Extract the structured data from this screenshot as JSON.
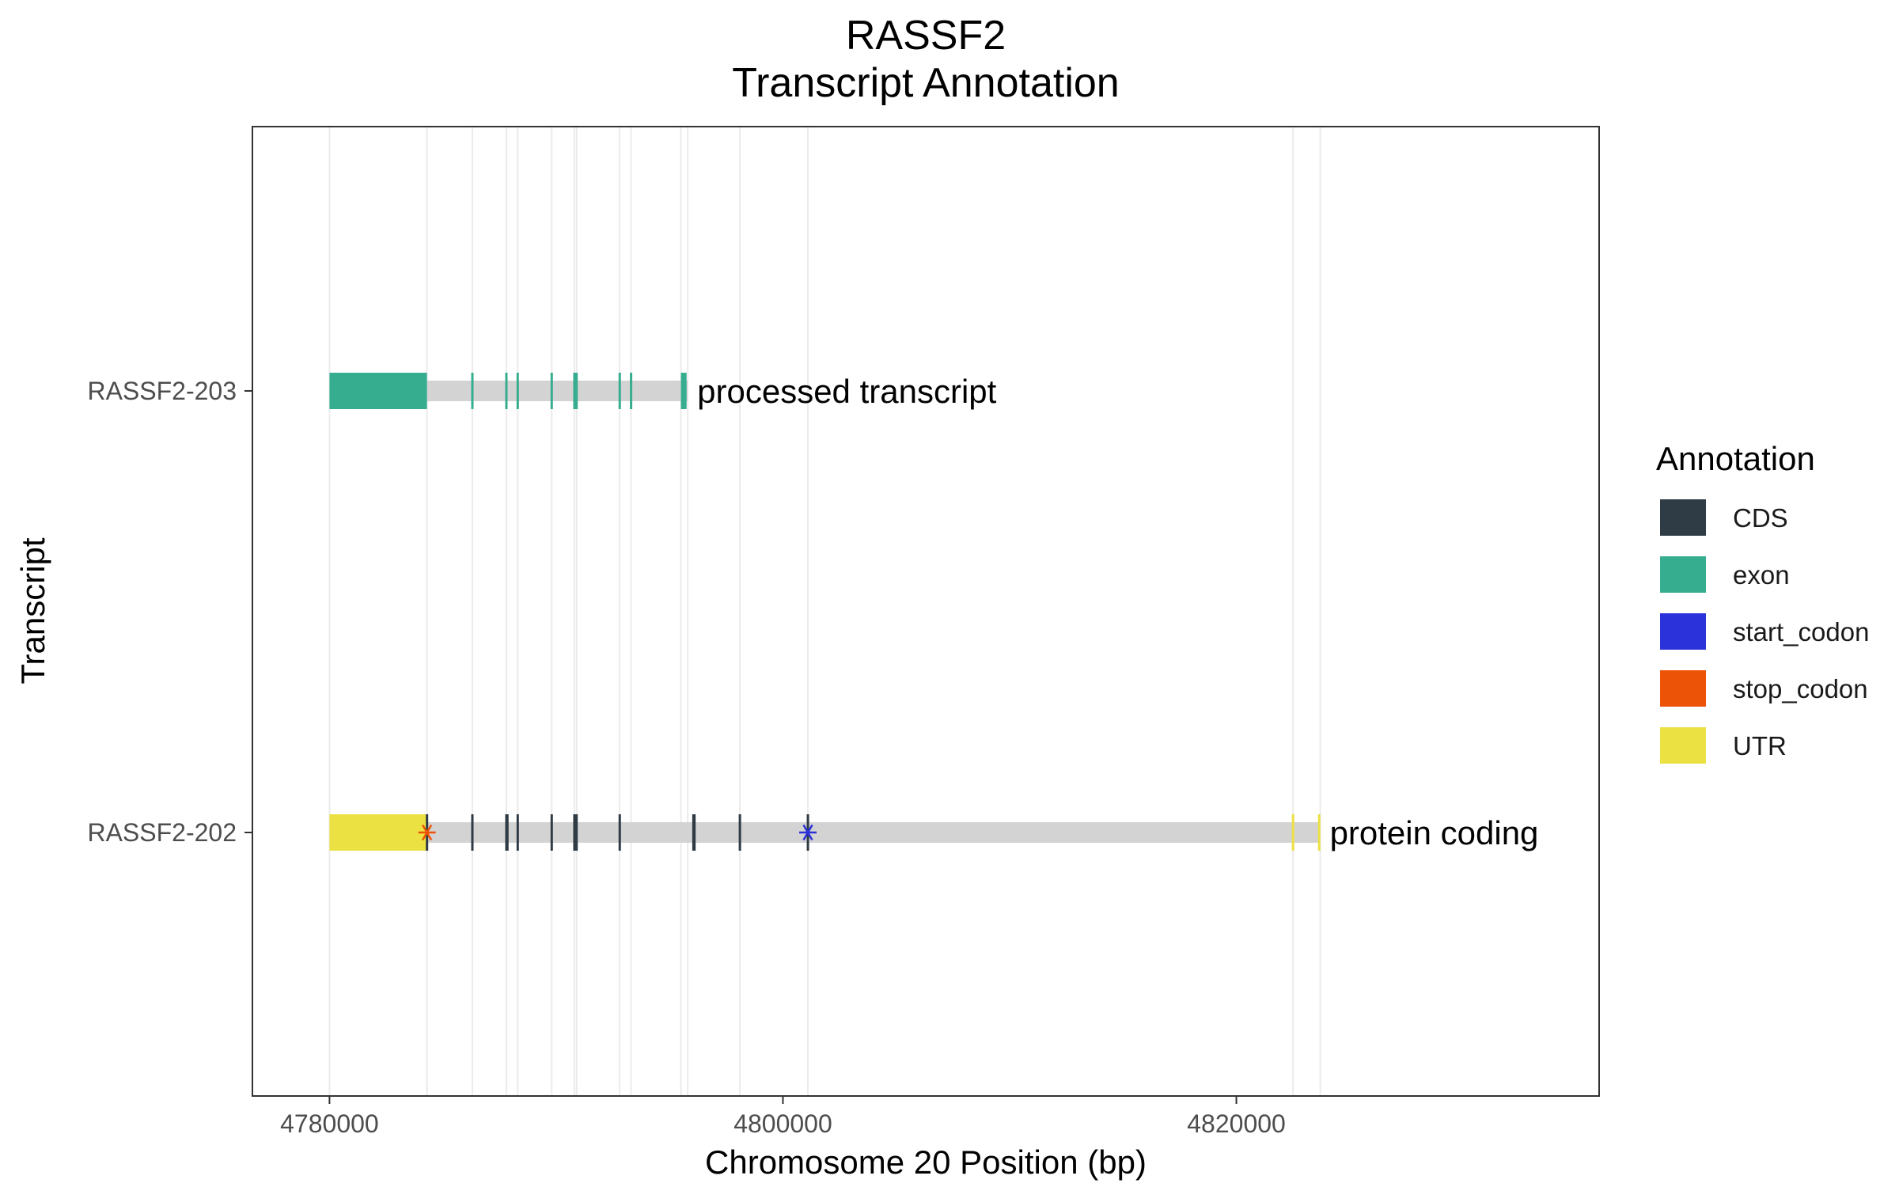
{
  "chart_data": {
    "type": "gene-track",
    "title": [
      "RASSF2",
      "Transcript Annotation"
    ],
    "xlabel": "Chromosome 20 Position (bp)",
    "ylabel": "Transcript",
    "xlim": [
      4776600,
      4836000
    ],
    "x_ticks": [
      4780000,
      4800000,
      4820000
    ],
    "x_tick_labels": [
      "4780000",
      "4800000",
      "4820000"
    ],
    "grid": true,
    "legend": {
      "title": "Annotation",
      "placement": "right",
      "entries": [
        {
          "label": "CDS",
          "color": "#2f3b45"
        },
        {
          "label": "exon",
          "color": "#36ad8f"
        },
        {
          "label": "start_codon",
          "color": "#2b32d9"
        },
        {
          "label": "stop_codon",
          "color": "#ec5306"
        },
        {
          "label": "UTR",
          "color": "#ebe143"
        }
      ]
    },
    "grid_positions": [
      4780000,
      4784300,
      4786300,
      4787800,
      4788300,
      4789800,
      4790800,
      4790900,
      4792800,
      4793300,
      4795500,
      4795800,
      4798100,
      4801100,
      4822500,
      4823700
    ],
    "transcripts": [
      {
        "name": "RASSF2-203",
        "biotype": "processed transcript",
        "span": [
          4780000,
          4795800
        ],
        "features": [
          {
            "type": "exon",
            "start": 4780000,
            "end": 4784300
          },
          {
            "type": "exon",
            "start": 4786250,
            "end": 4786350
          },
          {
            "type": "exon",
            "start": 4787750,
            "end": 4787850
          },
          {
            "type": "exon",
            "start": 4788250,
            "end": 4788350
          },
          {
            "type": "exon",
            "start": 4789750,
            "end": 4789850
          },
          {
            "type": "exon",
            "start": 4790750,
            "end": 4790950
          },
          {
            "type": "exon",
            "start": 4792750,
            "end": 4792850
          },
          {
            "type": "exon",
            "start": 4793250,
            "end": 4793350
          },
          {
            "type": "exon",
            "start": 4795500,
            "end": 4795750
          }
        ]
      },
      {
        "name": "RASSF2-202",
        "biotype": "protein coding",
        "span": [
          4780000,
          4823700
        ],
        "features": [
          {
            "type": "UTR",
            "start": 4780000,
            "end": 4784300
          },
          {
            "type": "CDS",
            "start": 4784250,
            "end": 4784350
          },
          {
            "type": "CDS",
            "start": 4786250,
            "end": 4786350
          },
          {
            "type": "CDS",
            "start": 4787750,
            "end": 4787900
          },
          {
            "type": "CDS",
            "start": 4788250,
            "end": 4788350
          },
          {
            "type": "CDS",
            "start": 4789750,
            "end": 4789850
          },
          {
            "type": "CDS",
            "start": 4790750,
            "end": 4790950
          },
          {
            "type": "CDS",
            "start": 4792750,
            "end": 4792850
          },
          {
            "type": "CDS",
            "start": 4796000,
            "end": 4796150
          },
          {
            "type": "CDS",
            "start": 4798050,
            "end": 4798150
          },
          {
            "type": "CDS",
            "start": 4801050,
            "end": 4801150
          },
          {
            "type": "UTR",
            "start": 4822450,
            "end": 4822550
          },
          {
            "type": "UTR",
            "start": 4823600,
            "end": 4823700
          }
        ],
        "codons": [
          {
            "type": "stop_codon",
            "position": 4784300
          },
          {
            "type": "start_codon",
            "position": 4801100
          }
        ]
      }
    ]
  }
}
